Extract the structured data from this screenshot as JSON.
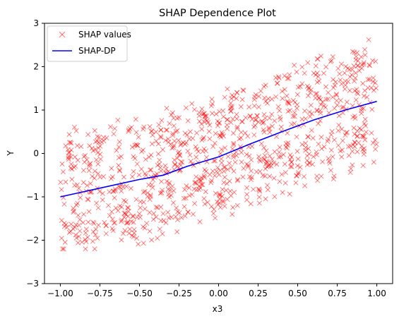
{
  "chart_data": {
    "type": "scatter",
    "title": "SHAP Dependence Plot",
    "xlabel": "x3",
    "ylabel": "Y",
    "xlim": [
      -1.1,
      1.1
    ],
    "ylim": [
      -3,
      3
    ],
    "xticks": [
      -1.0,
      -0.75,
      -0.5,
      -0.25,
      0.0,
      0.25,
      0.5,
      0.75,
      1.0
    ],
    "xtick_labels": [
      "−1.00",
      "−0.75",
      "−0.50",
      "−0.25",
      "0.00",
      "0.25",
      "0.50",
      "0.75",
      "1.00"
    ],
    "yticks": [
      -3,
      -2,
      -1,
      0,
      1,
      2,
      3
    ],
    "ytick_labels": [
      "−3",
      "−2",
      "−1",
      "0",
      "1",
      "2",
      "3"
    ],
    "grid": false,
    "legend_position": "top-left",
    "series": [
      {
        "name": "SHAP values",
        "kind": "scatter",
        "marker": "x",
        "color": "#ff0000",
        "opacity": 0.5,
        "point_count": 1000,
        "description": "points spread around the SHAP-DP curve, roughly ±1.5 in Y"
      },
      {
        "name": "SHAP-DP",
        "kind": "line",
        "color": "#0000ff",
        "x": [
          -1.0,
          -0.75,
          -0.5,
          -0.35,
          -0.2,
          0.0,
          0.2,
          0.4,
          0.6,
          0.8,
          1.0
        ],
        "y": [
          -1.0,
          -0.8,
          -0.6,
          -0.5,
          -0.3,
          -0.08,
          0.22,
          0.5,
          0.77,
          1.0,
          1.2
        ]
      }
    ]
  }
}
